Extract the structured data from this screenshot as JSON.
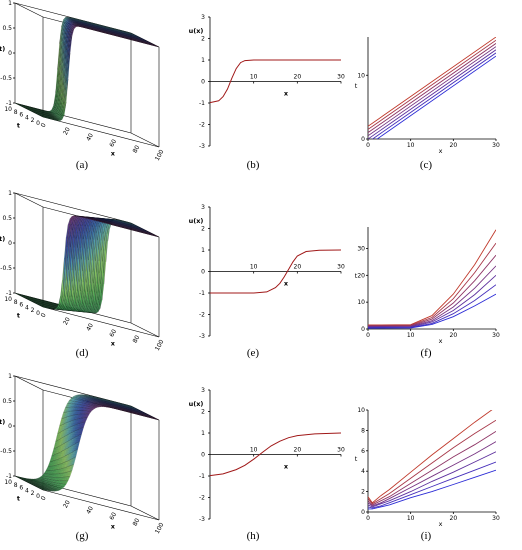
{
  "panels": [
    {
      "id": "a",
      "caption": "(a)",
      "kind": "surface",
      "zlabel": "u(x,t)",
      "tlabel": "t",
      "xlabel": "x",
      "zticks": [
        "1",
        "0.5",
        "0",
        "-0.5",
        "-1"
      ],
      "tticks": [
        "10",
        "8",
        "6",
        "4",
        "2",
        "0"
      ],
      "xticks": [
        "0",
        "20",
        "40",
        "60",
        "80",
        "100"
      ],
      "center": 0.22,
      "width": 0.03,
      "drift": 0.05
    },
    {
      "id": "b",
      "caption": "(b)",
      "kind": "profile",
      "ylabel": "u(x)",
      "xlabel": "x",
      "yticks": [
        "3",
        "2",
        "1",
        "0",
        "-1",
        "-2",
        "-3"
      ],
      "xticks": [
        "10",
        "20",
        "30"
      ]
    },
    {
      "id": "c",
      "caption": "(c)",
      "kind": "lines",
      "ylabel": "t",
      "xlabel": "x",
      "yticks": [
        "10",
        "0"
      ],
      "xticks": [
        "0",
        "10",
        "20",
        "30"
      ]
    },
    {
      "id": "d",
      "caption": "(d)",
      "kind": "surface",
      "zlabel": "u(x,t)",
      "tlabel": "t",
      "xlabel": "x",
      "zticks": [
        "1",
        "0.5",
        "0",
        "-0.5",
        "-1"
      ],
      "tticks": [
        "10",
        "8",
        "6",
        "4",
        "2",
        "0"
      ],
      "xticks": [
        "0",
        "20",
        "40",
        "60",
        "80",
        "100"
      ],
      "center": 0.18,
      "width": 0.035,
      "drift": 0.2
    },
    {
      "id": "e",
      "caption": "(e)",
      "kind": "profile",
      "ylabel": "u(x)",
      "xlabel": "x",
      "yticks": [
        "3",
        "2",
        "1",
        "0",
        "-1",
        "-2",
        "-3"
      ],
      "xticks": [
        "10",
        "20",
        "30"
      ]
    },
    {
      "id": "f",
      "caption": "(f)",
      "kind": "lines",
      "ylabel": "t",
      "xlabel": "x",
      "yticks": [
        "30",
        "20",
        "10",
        "0"
      ],
      "xticks": [
        "0",
        "10",
        "20",
        "30"
      ]
    },
    {
      "id": "g",
      "caption": "(g)",
      "kind": "surface",
      "zlabel": "u(x,t)",
      "tlabel": "t",
      "xlabel": "x",
      "zticks": [
        "1",
        "0.5",
        "0",
        "-0.5",
        "-1"
      ],
      "tticks": [
        "10",
        "8",
        "6",
        "4",
        "2",
        "0"
      ],
      "xticks": [
        "0",
        "20",
        "40",
        "60",
        "80",
        "100"
      ],
      "center": 0.3,
      "width": 0.1,
      "drift": 0.02
    },
    {
      "id": "h",
      "caption": "(h)",
      "kind": "profile",
      "ylabel": "u(x)",
      "xlabel": "x",
      "yticks": [
        "3",
        "2",
        "1",
        "0",
        "-1",
        "-2",
        "-3"
      ],
      "xticks": [
        "10",
        "20",
        "30"
      ]
    },
    {
      "id": "i",
      "caption": "(i)",
      "kind": "lines",
      "ylabel": "t",
      "xlabel": "x",
      "yticks": [
        "10",
        "8",
        "6",
        "4",
        "2",
        "0"
      ],
      "xticks": [
        "0",
        "10",
        "20",
        "30"
      ]
    }
  ],
  "chart_data": [
    {
      "panel": "b",
      "type": "line",
      "xlim": [
        0,
        30
      ],
      "ylim": [
        -3,
        3
      ],
      "series": [
        {
          "x": [
            0,
            2,
            3,
            4,
            5,
            6,
            7,
            8,
            10,
            15,
            20,
            30
          ],
          "y": [
            -0.98,
            -0.9,
            -0.7,
            -0.35,
            0.15,
            0.6,
            0.88,
            0.97,
            1.0,
            1.0,
            1.0,
            1.0
          ]
        }
      ]
    },
    {
      "panel": "e",
      "type": "line",
      "xlim": [
        0,
        30
      ],
      "ylim": [
        -3,
        3
      ],
      "series": [
        {
          "x": [
            0,
            5,
            10,
            13,
            15,
            16,
            17,
            18,
            19,
            20,
            22,
            25,
            30
          ],
          "y": [
            -1.0,
            -1.0,
            -1.0,
            -0.95,
            -0.75,
            -0.55,
            -0.25,
            0.1,
            0.45,
            0.72,
            0.93,
            0.99,
            1.0
          ]
        }
      ]
    },
    {
      "panel": "h",
      "type": "line",
      "xlim": [
        0,
        30
      ],
      "ylim": [
        -3,
        3
      ],
      "series": [
        {
          "x": [
            0,
            3,
            6,
            8,
            10,
            12,
            14,
            16,
            18,
            20,
            24,
            30
          ],
          "y": [
            -0.98,
            -0.9,
            -0.7,
            -0.5,
            -0.22,
            0.1,
            0.4,
            0.62,
            0.78,
            0.88,
            0.96,
            1.0
          ]
        }
      ]
    },
    {
      "panel": "c",
      "type": "line",
      "xlim": [
        0,
        30
      ],
      "ylim": [
        0,
        16
      ],
      "series": [
        {
          "x": [
            0,
            30
          ],
          "y": [
            2.0,
            16.0
          ]
        },
        {
          "x": [
            0,
            30
          ],
          "y": [
            1.5,
            15.5
          ]
        },
        {
          "x": [
            0,
            30
          ],
          "y": [
            1.0,
            15.0
          ]
        },
        {
          "x": [
            0,
            30
          ],
          "y": [
            0.5,
            14.5
          ]
        },
        {
          "x": [
            0,
            30
          ],
          "y": [
            0.0,
            14.0
          ]
        },
        {
          "x": [
            0,
            30
          ],
          "y": [
            -0.5,
            13.5
          ]
        },
        {
          "x": [
            0,
            30
          ],
          "y": [
            -1.0,
            13.0
          ]
        }
      ]
    },
    {
      "panel": "f",
      "type": "line",
      "xlim": [
        0,
        30
      ],
      "ylim": [
        0,
        38
      ],
      "series": [
        {
          "x": [
            0,
            10,
            15,
            20,
            25,
            30
          ],
          "y": [
            1.5,
            1.6,
            5,
            13,
            24,
            37
          ]
        },
        {
          "x": [
            0,
            10,
            15,
            20,
            25,
            30
          ],
          "y": [
            1.3,
            1.4,
            4.3,
            11.3,
            21,
            32
          ]
        },
        {
          "x": [
            0,
            10,
            15,
            20,
            25,
            30
          ],
          "y": [
            1.1,
            1.2,
            3.7,
            9.7,
            18,
            27.5
          ]
        },
        {
          "x": [
            0,
            10,
            15,
            20,
            25,
            30
          ],
          "y": [
            0.9,
            1.0,
            3.1,
            8.2,
            15.2,
            23.5
          ]
        },
        {
          "x": [
            0,
            10,
            15,
            20,
            25,
            30
          ],
          "y": [
            0.7,
            0.8,
            2.6,
            6.9,
            12.8,
            20
          ]
        },
        {
          "x": [
            0,
            10,
            15,
            20,
            25,
            30
          ],
          "y": [
            0.5,
            0.6,
            2.1,
            5.7,
            10.6,
            16.5
          ]
        },
        {
          "x": [
            0,
            10,
            15,
            20,
            25,
            30
          ],
          "y": [
            0.3,
            0.4,
            1.7,
            4.6,
            8.6,
            13
          ]
        }
      ]
    },
    {
      "panel": "i",
      "type": "line",
      "xlim": [
        0,
        30
      ],
      "ylim": [
        0,
        10
      ],
      "series": [
        {
          "x": [
            0,
            1,
            3,
            5,
            10,
            15,
            20,
            25,
            30
          ],
          "y": [
            1.5,
            0.9,
            1.6,
            2.2,
            3.9,
            5.6,
            7.2,
            8.8,
            10.3
          ]
        },
        {
          "x": [
            0,
            1,
            3,
            5,
            10,
            15,
            20,
            25,
            30
          ],
          "y": [
            1.3,
            0.8,
            1.3,
            1.8,
            3.3,
            4.8,
            6.3,
            7.7,
            9.0
          ]
        },
        {
          "x": [
            0,
            1,
            3,
            5,
            10,
            15,
            20,
            25,
            30
          ],
          "y": [
            1.1,
            0.7,
            1.1,
            1.5,
            2.8,
            4.1,
            5.4,
            6.6,
            7.9
          ]
        },
        {
          "x": [
            0,
            1,
            3,
            5,
            10,
            15,
            20,
            25,
            30
          ],
          "y": [
            0.9,
            0.6,
            0.9,
            1.3,
            2.4,
            3.5,
            4.6,
            5.7,
            6.9
          ]
        },
        {
          "x": [
            0,
            1,
            3,
            5,
            10,
            15,
            20,
            25,
            30
          ],
          "y": [
            0.7,
            0.5,
            0.8,
            1.1,
            2.0,
            3.0,
            3.9,
            4.9,
            5.9
          ]
        },
        {
          "x": [
            0,
            1,
            3,
            5,
            10,
            15,
            20,
            25,
            30
          ],
          "y": [
            0.5,
            0.4,
            0.6,
            0.9,
            1.7,
            2.5,
            3.3,
            4.1,
            4.9
          ]
        },
        {
          "x": [
            0,
            1,
            3,
            5,
            10,
            15,
            20,
            25,
            30
          ],
          "y": [
            0.3,
            0.3,
            0.5,
            0.7,
            1.4,
            2.0,
            2.7,
            3.4,
            4.1
          ]
        }
      ]
    }
  ]
}
